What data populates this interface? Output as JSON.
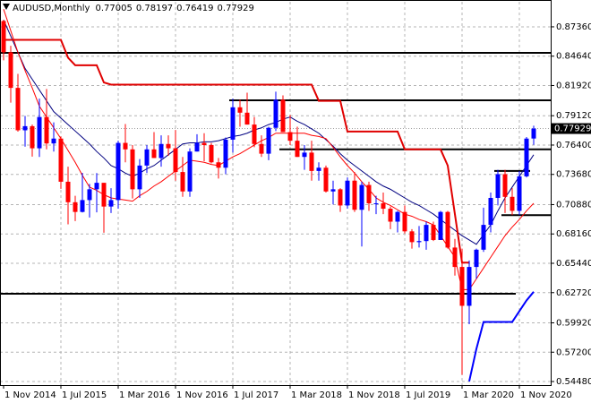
{
  "chart_data": {
    "type": "candlestick",
    "title": "AUDUSD,Monthly",
    "categories": [
      "1 Nov 2014",
      null,
      null,
      null,
      null,
      null,
      null,
      null,
      "1 Jul 2015",
      null,
      null,
      null,
      null,
      null,
      null,
      null,
      "1 Mar 2016",
      null,
      null,
      null,
      null,
      null,
      null,
      null,
      "1 Nov 2016",
      null,
      null,
      null,
      null,
      null,
      null,
      null,
      "1 Jul 2017",
      null,
      null,
      null,
      null,
      null,
      null,
      null,
      "1 Mar 2018",
      null,
      null,
      null,
      null,
      null,
      null,
      null,
      "1 Nov 2018",
      null,
      null,
      null,
      null,
      null,
      null,
      null,
      "1 Jul 2019",
      null,
      null,
      null,
      null,
      null,
      null,
      null,
      "1 Mar 2020",
      null,
      null,
      null,
      null,
      null,
      null,
      null,
      "1 Nov 2020",
      null,
      null
    ],
    "open": [
      0.879,
      0.85,
      0.817,
      0.7777,
      0.7815,
      0.761,
      0.79,
      0.7655,
      0.77,
      0.73,
      0.711,
      0.702,
      0.713,
      0.723,
      0.729,
      0.707,
      0.713,
      0.766,
      0.76,
      0.723,
      0.745,
      0.76,
      0.752,
      0.765,
      0.761,
      0.739,
      0.721,
      0.758,
      0.766,
      0.764,
      0.748,
      0.743,
      0.769,
      0.799,
      0.794,
      0.783,
      0.765,
      0.756,
      0.78,
      0.806,
      0.776,
      0.768,
      0.753,
      0.757,
      0.74,
      0.743,
      0.721,
      0.723,
      0.708,
      0.731,
      0.704,
      0.727,
      0.71,
      0.71,
      0.705,
      0.693,
      0.702,
      0.684,
      0.674,
      0.675,
      0.69,
      0.676,
      0.702,
      0.669,
      0.651,
      0.615,
      0.651,
      0.667,
      0.69,
      0.715,
      0.737,
      0.716,
      0.703,
      0.735,
      0.77005
    ],
    "high": [
      0.88,
      0.856,
      0.83,
      0.791,
      0.783,
      0.807,
      0.816,
      0.785,
      0.772,
      0.744,
      0.717,
      0.7382,
      0.728,
      0.738,
      0.729,
      0.724,
      0.768,
      0.7835,
      0.764,
      0.751,
      0.764,
      0.776,
      0.773,
      0.773,
      0.778,
      0.753,
      0.761,
      0.774,
      0.775,
      0.766,
      0.752,
      0.771,
      0.807,
      0.806,
      0.8125,
      0.79,
      0.773,
      0.781,
      0.8135,
      0.81,
      0.792,
      0.781,
      0.764,
      0.768,
      0.748,
      0.745,
      0.731,
      0.724,
      0.734,
      0.739,
      0.73,
      0.73,
      0.717,
      0.72,
      0.707,
      0.703,
      0.708,
      0.686,
      0.689,
      0.693,
      0.693,
      0.703,
      0.703,
      0.677,
      0.668,
      0.657,
      0.668,
      0.706,
      0.72,
      0.741,
      0.741,
      0.724,
      0.74,
      0.7715,
      0.78197
    ],
    "low": [
      0.8425,
      0.8033,
      0.7764,
      0.7625,
      0.7533,
      0.753,
      0.76,
      0.758,
      0.7234,
      0.6905,
      0.6935,
      0.7015,
      0.6968,
      0.7016,
      0.6827,
      0.701,
      0.705,
      0.748,
      0.7145,
      0.715,
      0.738,
      0.752,
      0.744,
      0.754,
      0.731,
      0.716,
      0.716,
      0.758,
      0.749,
      0.747,
      0.733,
      0.737,
      0.757,
      0.781,
      0.783,
      0.762,
      0.753,
      0.75,
      0.777,
      0.776,
      0.764,
      0.753,
      0.741,
      0.731,
      0.731,
      0.72,
      0.709,
      0.702,
      0.705,
      0.702,
      0.67,
      0.703,
      0.7,
      0.7,
      0.686,
      0.683,
      0.682,
      0.668,
      0.669,
      0.667,
      0.675,
      0.676,
      0.668,
      0.643,
      0.551,
      0.598,
      0.64,
      0.665,
      0.683,
      0.708,
      0.701,
      0.699,
      0.699,
      0.734,
      0.76419
    ],
    "close": [
      0.85,
      0.817,
      0.7777,
      0.7815,
      0.761,
      0.79,
      0.7655,
      0.77,
      0.73,
      0.711,
      0.702,
      0.713,
      0.723,
      0.729,
      0.707,
      0.713,
      0.766,
      0.76,
      0.723,
      0.745,
      0.76,
      0.752,
      0.765,
      0.761,
      0.739,
      0.721,
      0.758,
      0.766,
      0.764,
      0.748,
      0.743,
      0.769,
      0.799,
      0.794,
      0.783,
      0.765,
      0.756,
      0.78,
      0.806,
      0.776,
      0.768,
      0.753,
      0.757,
      0.74,
      0.743,
      0.721,
      0.723,
      0.708,
      0.731,
      0.704,
      0.727,
      0.71,
      0.71,
      0.705,
      0.693,
      0.702,
      0.684,
      0.674,
      0.675,
      0.69,
      0.676,
      0.702,
      0.669,
      0.651,
      0.615,
      0.651,
      0.667,
      0.69,
      0.715,
      0.737,
      0.716,
      0.703,
      0.735,
      0.77,
      0.77929
    ],
    "up_color": "#0000ff",
    "down_color": "#ff0000",
    "overlays": [
      {
        "color": "#000080",
        "width": 1,
        "values": [
          0.88,
          0.865,
          0.85,
          0.835,
          0.825,
          0.815,
          0.805,
          0.795,
          0.789,
          0.783,
          0.777,
          0.771,
          0.765,
          0.758,
          0.752,
          0.745,
          0.742,
          0.738,
          0.735,
          0.738,
          0.742,
          0.745,
          0.75,
          0.755,
          0.76,
          0.765,
          0.766,
          0.766,
          0.767,
          0.767,
          0.768,
          0.77,
          0.772,
          0.773,
          0.775,
          0.778,
          0.78,
          0.783,
          0.785,
          0.788,
          0.79,
          0.786,
          0.783,
          0.779,
          0.775,
          0.769,
          0.763,
          0.756,
          0.75,
          0.745,
          0.74,
          0.735,
          0.73,
          0.726,
          0.723,
          0.719,
          0.715,
          0.711,
          0.708,
          0.704,
          0.7,
          0.695,
          0.69,
          0.685,
          0.68,
          0.676,
          0.672,
          0.681,
          0.69,
          0.703,
          0.715,
          0.725,
          0.735,
          0.745,
          0.755
        ]
      },
      {
        "color": "#ff0000",
        "width": 1,
        "values": [
          0.89,
          0.87,
          0.85,
          0.833,
          0.817,
          0.8,
          0.79,
          0.78,
          0.77,
          0.759,
          0.748,
          0.736,
          0.725,
          0.722,
          0.718,
          0.715,
          0.714,
          0.713,
          0.712,
          0.717,
          0.721,
          0.726,
          0.73,
          0.735,
          0.74,
          0.745,
          0.75,
          0.749,
          0.748,
          0.746,
          0.745,
          0.749,
          0.753,
          0.756,
          0.76,
          0.764,
          0.768,
          0.771,
          0.775,
          0.775,
          0.775,
          0.775,
          0.775,
          0.773,
          0.772,
          0.77,
          0.762,
          0.753,
          0.745,
          0.738,
          0.73,
          0.723,
          0.715,
          0.711,
          0.708,
          0.704,
          0.7,
          0.698,
          0.695,
          0.693,
          0.69,
          0.68,
          0.67,
          0.66,
          0.63,
          0.63,
          0.64,
          0.65,
          0.66,
          0.67,
          0.68,
          0.688,
          0.695,
          0.703,
          0.71
        ]
      },
      {
        "color": "#e00000",
        "width": 2,
        "values": [
          0.8615,
          0.8615,
          0.8615,
          0.8615,
          0.8615,
          0.8615,
          0.8615,
          0.8615,
          0.8615,
          0.845,
          0.838,
          0.838,
          0.838,
          0.838,
          0.822,
          0.82,
          0.82,
          0.82,
          0.82,
          0.82,
          0.82,
          0.82,
          0.82,
          0.82,
          0.82,
          0.82,
          0.82,
          0.82,
          0.82,
          0.82,
          0.82,
          0.82,
          0.82,
          0.82,
          0.82,
          0.82,
          0.82,
          0.82,
          0.82,
          0.82,
          0.82,
          0.82,
          0.82,
          0.82,
          0.805,
          0.805,
          0.805,
          0.805,
          0.7765,
          0.7765,
          0.7765,
          0.7765,
          0.7765,
          0.7765,
          0.7765,
          0.7765,
          0.76,
          0.76,
          0.76,
          0.76,
          0.76,
          0.76,
          0.745,
          0.7,
          0.655,
          0.655,
          null,
          null,
          null,
          null,
          null,
          null,
          null,
          null,
          null
        ]
      },
      {
        "color": "#0000ff",
        "width": 2,
        "values": [
          null,
          null,
          null,
          null,
          null,
          null,
          null,
          null,
          null,
          null,
          null,
          null,
          null,
          null,
          null,
          null,
          null,
          null,
          null,
          null,
          null,
          null,
          null,
          null,
          null,
          null,
          null,
          null,
          null,
          null,
          null,
          null,
          null,
          null,
          null,
          null,
          null,
          null,
          null,
          null,
          null,
          null,
          null,
          null,
          null,
          null,
          null,
          null,
          null,
          null,
          null,
          null,
          null,
          null,
          null,
          null,
          null,
          null,
          null,
          null,
          null,
          null,
          null,
          null,
          null,
          0.545,
          0.575,
          0.6,
          0.6,
          0.6,
          0.6,
          0.6,
          0.61,
          0.62,
          0.628
        ]
      }
    ],
    "levels": [
      {
        "value": 0.8495,
        "from": 0,
        "to": 74
      },
      {
        "value": 0.8055,
        "from": 32,
        "to": 74
      },
      {
        "value": 0.76,
        "from": 39,
        "to": 74
      },
      {
        "value": 0.6262,
        "from": 0,
        "to": 71
      },
      {
        "value": 0.74,
        "from": 69,
        "to": 73
      },
      {
        "value": 0.699,
        "from": 70,
        "to": 74
      }
    ],
    "ylim": [
      0.5415,
      0.8968
    ],
    "yticks": [
      {
        "value": 0.8736,
        "label": "0.87360"
      },
      {
        "value": 0.8464,
        "label": "0.84640"
      },
      {
        "value": 0.8192,
        "label": "0.81920"
      },
      {
        "value": 0.7912,
        "label": "0.79120"
      },
      {
        "value": 0.764,
        "label": "0.76400"
      },
      {
        "value": 0.7368,
        "label": "0.73680"
      },
      {
        "value": 0.7088,
        "label": "0.70880"
      },
      {
        "value": 0.6816,
        "label": "0.68160"
      },
      {
        "value": 0.6544,
        "label": "0.65440"
      },
      {
        "value": 0.6272,
        "label": "0.62720"
      },
      {
        "value": 0.5992,
        "label": "0.59920"
      },
      {
        "value": 0.572,
        "label": "0.57200"
      },
      {
        "value": 0.5448,
        "label": "0.54480"
      }
    ],
    "grid": true
  }
}
